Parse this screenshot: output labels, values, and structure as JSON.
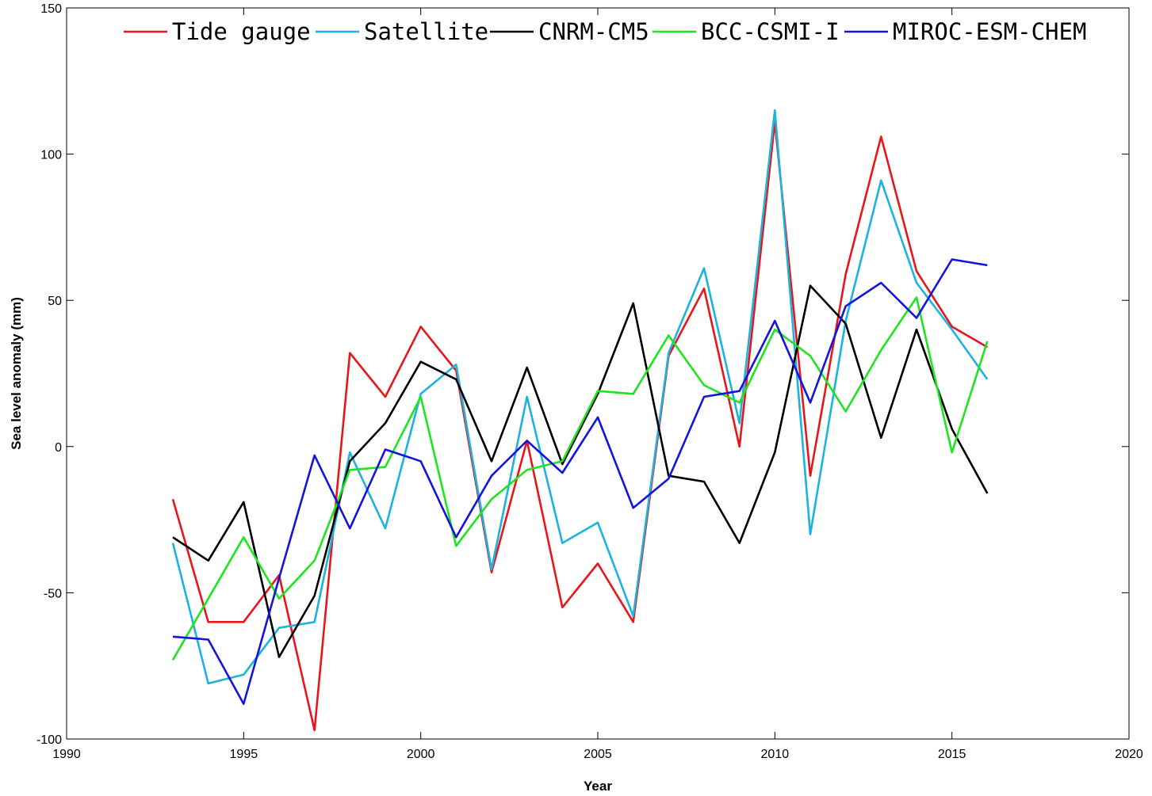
{
  "chart_data": {
    "type": "line",
    "title": "",
    "xlabel": "Year",
    "ylabel": "Sea level anomaly (mm)",
    "xlim": [
      1990,
      2020
    ],
    "ylim": [
      -100,
      150
    ],
    "xticks": [
      1990,
      1995,
      2000,
      2005,
      2010,
      2015,
      2020
    ],
    "yticks": [
      -100,
      -50,
      0,
      50,
      100,
      150
    ],
    "grid": false,
    "legend_position": "top",
    "x": [
      1993,
      1994,
      1995,
      1996,
      1997,
      1998,
      1999,
      2000,
      2001,
      2002,
      2003,
      2004,
      2005,
      2006,
      2007,
      2008,
      2009,
      2010,
      2011,
      2012,
      2013,
      2014,
      2015,
      2016
    ],
    "series": [
      {
        "name": "Tide gauge",
        "color": "#e8161b",
        "values": [
          -18,
          -60,
          -60,
          -44,
          -97,
          32,
          17,
          41,
          26,
          -43,
          2,
          -55,
          -40,
          -60,
          31,
          54,
          0,
          111,
          -10,
          59,
          106,
          60,
          41,
          34
        ]
      },
      {
        "name": "Satellite",
        "color": "#1cb3e0",
        "values": [
          -33,
          -81,
          -78,
          -62,
          -60,
          -2,
          -28,
          18,
          28,
          -42,
          17,
          -33,
          -26,
          -58,
          32,
          61,
          8,
          115,
          -30,
          43,
          91,
          56,
          40,
          23
        ]
      },
      {
        "name": "CNRM-CM5",
        "color": "#000000",
        "values": [
          -31,
          -39,
          -19,
          -72,
          -51,
          -5,
          8,
          29,
          23,
          -5,
          27,
          -6,
          18,
          49,
          -10,
          -12,
          -33,
          -2,
          55,
          42,
          3,
          40,
          6,
          -16
        ]
      },
      {
        "name": "BCC-CSMI-I",
        "color": "#1ee61e",
        "values": [
          -73,
          -52,
          -31,
          -52,
          -39,
          -8,
          -7,
          17,
          -34,
          -18,
          -8,
          -5,
          19,
          18,
          38,
          21,
          15,
          40,
          31,
          12,
          33,
          51,
          -2,
          36
        ]
      },
      {
        "name": "MIROC-ESM-CHEM",
        "color": "#1414e0",
        "values": [
          -65,
          -66,
          -88,
          -45,
          -3,
          -28,
          -1,
          -5,
          -31,
          -10,
          2,
          -9,
          10,
          -21,
          -11,
          17,
          19,
          43,
          15,
          48,
          56,
          44,
          64,
          62
        ]
      }
    ]
  }
}
